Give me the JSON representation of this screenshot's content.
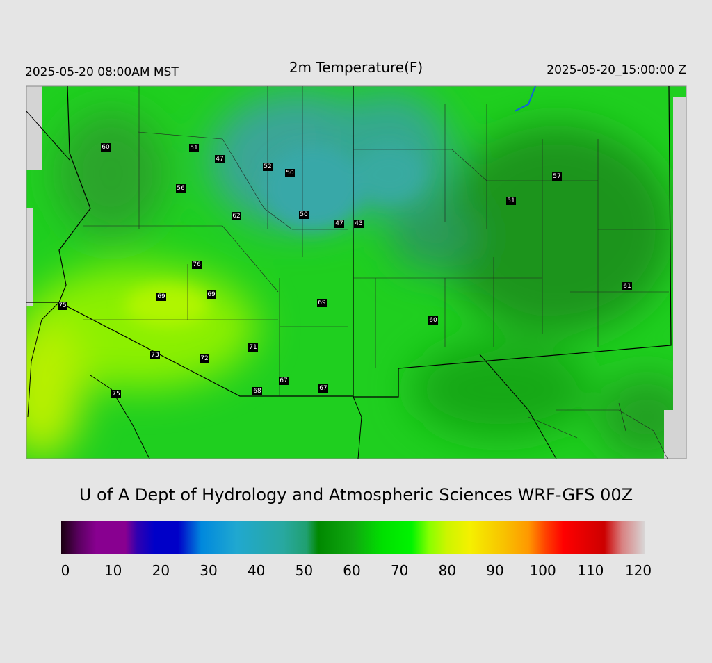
{
  "header": {
    "left": "2025-05-20 08:00AM MST",
    "title": "2m Temperature(F)",
    "right": "2025-05-20_15:00:00 Z"
  },
  "stations": [
    60,
    51,
    47,
    52,
    50,
    56,
    62,
    50,
    47,
    43,
    57,
    51,
    76,
    69,
    69,
    69,
    75,
    61,
    60,
    73,
    72,
    71,
    67,
    67,
    68,
    75
  ],
  "footer": "U of A Dept of Hydrology and Atmospheric Sciences WRF-GFS 00Z",
  "colorbar": {
    "ticks": [
      0,
      10,
      20,
      30,
      40,
      50,
      60,
      70,
      80,
      90,
      100,
      110,
      120
    ]
  }
}
